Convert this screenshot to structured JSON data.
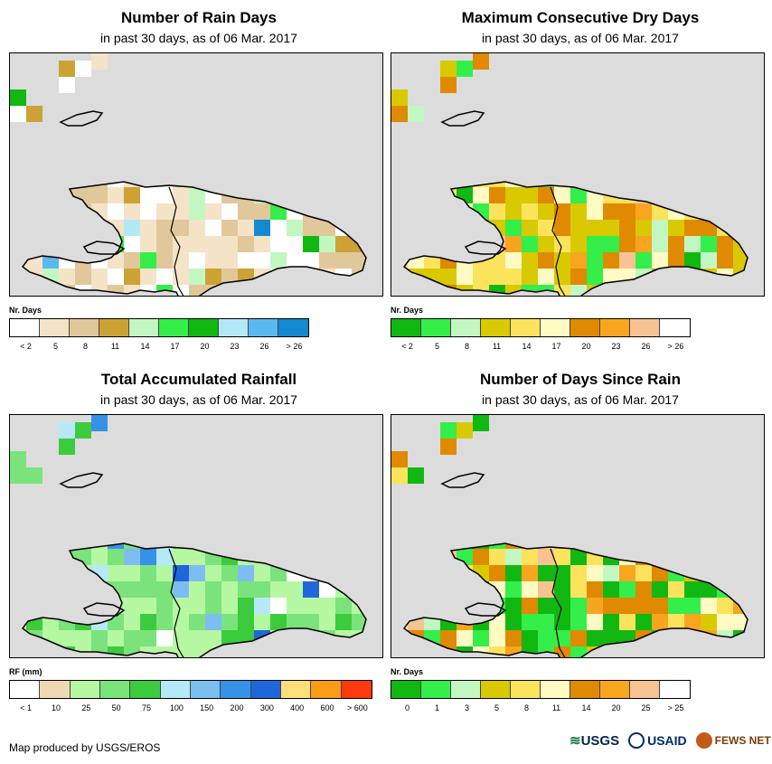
{
  "panels": [
    {
      "title": "Number of Rain Days",
      "subtitle": "in past 30 days, as of 06 Mar. 2017",
      "legend_title": "Nr. Days",
      "legend_colors": [
        "#ffffff",
        "#f5e3c8",
        "#e1c89a",
        "#cda235",
        "#c2f7c2",
        "#34ee4a",
        "#11b811",
        "#b3e9f7",
        "#5cb9f0",
        "#1489cf"
      ],
      "legend_labels": [
        "< 2",
        "5",
        "8",
        "11",
        "14",
        "17",
        "20",
        "23",
        "26",
        "> 26"
      ]
    },
    {
      "title": "Maximum Consecutive Dry Days",
      "subtitle": "in past 30 days, as of 06 Mar. 2017",
      "legend_title": "Nr. Days",
      "legend_colors": [
        "#11b811",
        "#34ee4a",
        "#c2f7c2",
        "#d9c900",
        "#fbe35c",
        "#fffbc2",
        "#df8a00",
        "#f8a520",
        "#f9c293",
        "#ffffff"
      ],
      "legend_labels": [
        "< 2",
        "5",
        "8",
        "11",
        "14",
        "17",
        "20",
        "23",
        "26",
        "> 26"
      ]
    },
    {
      "title": "Total Accumulated Rainfall",
      "subtitle": "in past 30 days, as of 06 Mar. 2017",
      "legend_title": "RF (mm)",
      "legend_colors": [
        "#ffffff",
        "#efd9b4",
        "#b6f7a2",
        "#7be37b",
        "#3ccb3c",
        "#b6e9f7",
        "#7cbef0",
        "#3692e8",
        "#1f66dd",
        "#fbe07a",
        "#fb9d16",
        "#fd3a0f"
      ],
      "legend_labels": [
        "< 1",
        "10",
        "25",
        "50",
        "75",
        "100",
        "150",
        "200",
        "300",
        "400",
        "600",
        "> 600"
      ]
    },
    {
      "title": "Number of Days Since Rain",
      "subtitle": "in past 30 days, as of 06 Mar. 2017",
      "legend_title": "Nr. Days",
      "legend_colors": [
        "#11b811",
        "#34ee4a",
        "#c2f7c2",
        "#d9c900",
        "#fbe35c",
        "#fffbc2",
        "#df8a00",
        "#f8a520",
        "#f9c293",
        "#ffffff"
      ],
      "legend_labels": [
        "0",
        "1",
        "3",
        "5",
        "8",
        "11",
        "14",
        "20",
        "25",
        "> 25"
      ]
    }
  ],
  "footer": "Map produced by USGS/EROS",
  "logos": [
    "USGS",
    "USAID",
    "FEWS NET"
  ]
}
